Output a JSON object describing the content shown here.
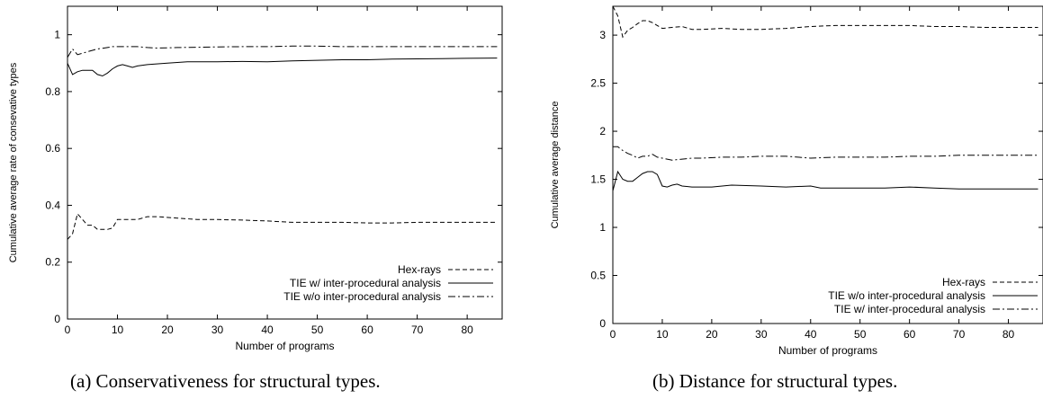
{
  "chart_data": [
    {
      "type": "line",
      "caption": "(a) Conservativeness for structural types.",
      "xlabel": "Number of programs",
      "ylabel": "Cumulative average rate of consevative types",
      "xlim": [
        0,
        87
      ],
      "ylim": [
        0,
        1.1
      ],
      "xticks": [
        0,
        10,
        20,
        30,
        40,
        50,
        60,
        70,
        80
      ],
      "yticks": [
        0,
        0.2,
        0.4,
        0.6,
        0.8,
        1
      ],
      "ytick_labels": [
        "0",
        "0.2",
        "0.4",
        "0.6",
        "0.8",
        "1"
      ],
      "grid": false,
      "legend_position": "bottom-right",
      "series": [
        {
          "name": "Hex-rays",
          "dash": "dashed",
          "x": [
            0,
            1,
            2,
            3,
            4,
            5,
            6,
            7,
            8,
            9,
            10,
            12,
            14,
            16,
            18,
            22,
            26,
            30,
            35,
            40,
            45,
            50,
            55,
            60,
            65,
            70,
            75,
            80,
            86
          ],
          "y": [
            0.28,
            0.3,
            0.37,
            0.35,
            0.33,
            0.33,
            0.315,
            0.315,
            0.315,
            0.32,
            0.35,
            0.35,
            0.35,
            0.36,
            0.36,
            0.355,
            0.35,
            0.35,
            0.348,
            0.345,
            0.34,
            0.34,
            0.34,
            0.338,
            0.338,
            0.34,
            0.34,
            0.34,
            0.34
          ]
        },
        {
          "name": "TIE w/ inter-procedural analysis",
          "dash": "solid",
          "x": [
            0,
            1,
            2,
            3,
            4,
            5,
            6,
            7,
            8,
            9,
            10,
            11,
            12,
            13,
            14,
            16,
            20,
            24,
            30,
            35,
            40,
            45,
            50,
            55,
            60,
            65,
            70,
            75,
            80,
            86
          ],
          "y": [
            0.9,
            0.86,
            0.87,
            0.875,
            0.875,
            0.875,
            0.86,
            0.855,
            0.865,
            0.88,
            0.89,
            0.895,
            0.89,
            0.885,
            0.89,
            0.895,
            0.9,
            0.905,
            0.905,
            0.906,
            0.905,
            0.908,
            0.91,
            0.912,
            0.912,
            0.914,
            0.915,
            0.916,
            0.917,
            0.918
          ]
        },
        {
          "name": "TIE w/o inter-procedural analysis",
          "dash": "dash-dot",
          "x": [
            0,
            1,
            2,
            3,
            4,
            5,
            6,
            7,
            8,
            9,
            10,
            12,
            14,
            16,
            18,
            22,
            26,
            30,
            35,
            40,
            45,
            50,
            55,
            60,
            65,
            70,
            75,
            80,
            86
          ],
          "y": [
            0.92,
            0.95,
            0.93,
            0.935,
            0.94,
            0.945,
            0.95,
            0.952,
            0.955,
            0.958,
            0.958,
            0.958,
            0.958,
            0.955,
            0.953,
            0.955,
            0.956,
            0.957,
            0.958,
            0.958,
            0.96,
            0.96,
            0.958,
            0.958,
            0.958,
            0.958,
            0.958,
            0.958,
            0.958
          ]
        }
      ]
    },
    {
      "type": "line",
      "caption": "(b) Distance for structural types.",
      "xlabel": "Number of programs",
      "ylabel": "Cumulative average distance",
      "xlim": [
        0,
        87
      ],
      "ylim": [
        0,
        3.3
      ],
      "xticks": [
        0,
        10,
        20,
        30,
        40,
        50,
        60,
        70,
        80
      ],
      "yticks": [
        0,
        0.5,
        1,
        1.5,
        2,
        2.5,
        3
      ],
      "ytick_labels": [
        "0",
        "0.5",
        "1",
        "1.5",
        "2",
        "2.5",
        "3"
      ],
      "grid": false,
      "legend_position": "bottom-right",
      "series": [
        {
          "name": "Hex-rays",
          "dash": "dashed",
          "x": [
            0,
            1,
            2,
            3,
            4,
            5,
            6,
            7,
            8,
            9,
            10,
            12,
            14,
            16,
            18,
            22,
            26,
            30,
            35,
            40,
            45,
            50,
            55,
            60,
            65,
            70,
            75,
            80,
            86
          ],
          "y": [
            3.3,
            3.2,
            2.98,
            3.05,
            3.08,
            3.12,
            3.15,
            3.15,
            3.13,
            3.1,
            3.07,
            3.08,
            3.09,
            3.06,
            3.06,
            3.07,
            3.06,
            3.06,
            3.07,
            3.09,
            3.1,
            3.1,
            3.1,
            3.1,
            3.09,
            3.09,
            3.08,
            3.08,
            3.08
          ]
        },
        {
          "name": "TIE w/o inter-procedural analysis",
          "dash": "solid",
          "x": [
            0,
            1,
            2,
            3,
            4,
            5,
            6,
            7,
            8,
            9,
            10,
            11,
            12,
            13,
            14,
            16,
            20,
            24,
            30,
            35,
            40,
            42,
            45,
            50,
            55,
            60,
            65,
            70,
            75,
            80,
            86
          ],
          "y": [
            1.38,
            1.58,
            1.5,
            1.48,
            1.48,
            1.52,
            1.56,
            1.58,
            1.58,
            1.55,
            1.43,
            1.42,
            1.44,
            1.45,
            1.43,
            1.42,
            1.42,
            1.44,
            1.43,
            1.42,
            1.43,
            1.41,
            1.41,
            1.41,
            1.41,
            1.42,
            1.41,
            1.4,
            1.4,
            1.4,
            1.4
          ]
        },
        {
          "name": "TIE w/ inter-procedural analysis",
          "dash": "dash-dot",
          "x": [
            0,
            1,
            2,
            3,
            4,
            5,
            6,
            7,
            8,
            9,
            10,
            12,
            14,
            16,
            18,
            22,
            26,
            30,
            35,
            40,
            45,
            50,
            55,
            60,
            65,
            70,
            75,
            80,
            86
          ],
          "y": [
            1.84,
            1.84,
            1.8,
            1.77,
            1.75,
            1.72,
            1.74,
            1.74,
            1.76,
            1.73,
            1.72,
            1.7,
            1.71,
            1.72,
            1.72,
            1.73,
            1.73,
            1.74,
            1.74,
            1.72,
            1.73,
            1.73,
            1.73,
            1.74,
            1.74,
            1.75,
            1.75,
            1.75,
            1.75
          ]
        }
      ]
    }
  ]
}
